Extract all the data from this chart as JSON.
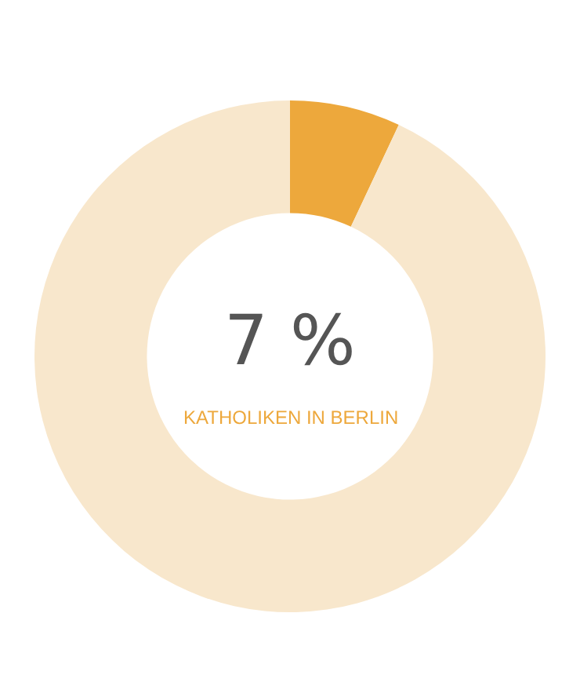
{
  "chart_data": {
    "type": "donut",
    "categories": [
      null,
      null
    ],
    "annotations": [
      "KATHOLIKEN IN BERLIN"
    ],
    "values": [
      7,
      93
    ],
    "colors": [
      "#eda83c",
      "#f8e7cc"
    ],
    "value_labels": [
      "7 %",
      null
    ],
    "legend": false
  }
}
